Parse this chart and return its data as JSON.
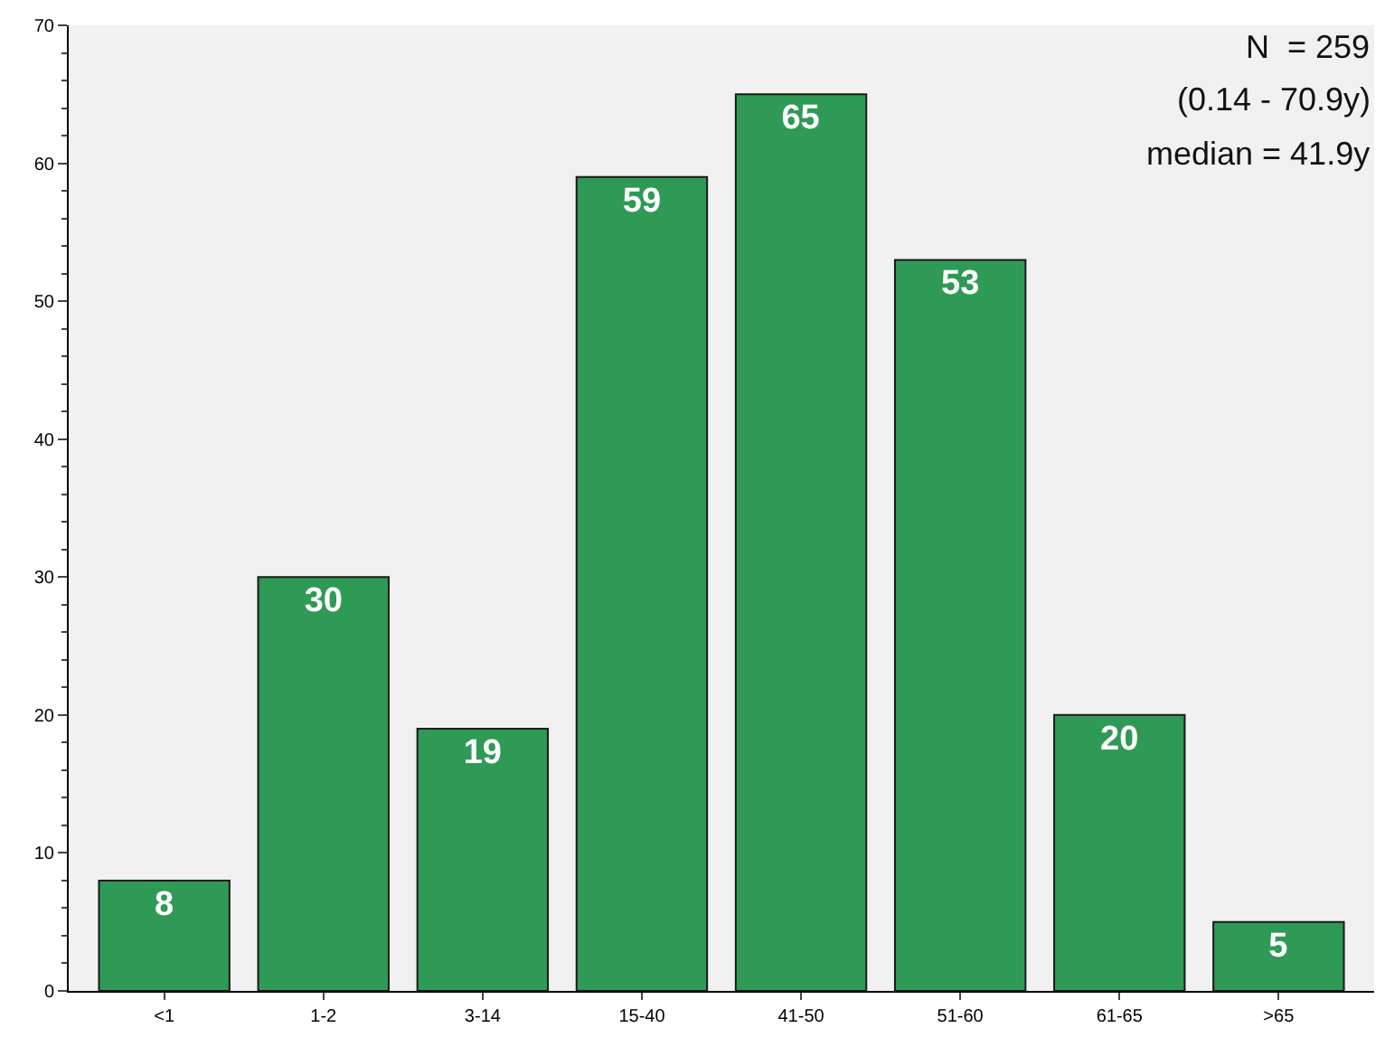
{
  "chart_data": {
    "type": "bar",
    "categories": [
      "<1",
      "1-2",
      "3-14",
      "15-40",
      "41-50",
      "51-60",
      "61-65",
      ">65"
    ],
    "values": [
      8,
      30,
      19,
      59,
      65,
      53,
      20,
      5
    ],
    "color": "#2e9a55",
    "ylim": [
      0,
      70
    ],
    "yticks": [
      0,
      10,
      20,
      30,
      40,
      50,
      60,
      70
    ],
    "grid": false,
    "data_labels": true,
    "annotations": [
      "N  = 259",
      "(0.14 - 70.9y)",
      "median = 41.9y"
    ]
  }
}
